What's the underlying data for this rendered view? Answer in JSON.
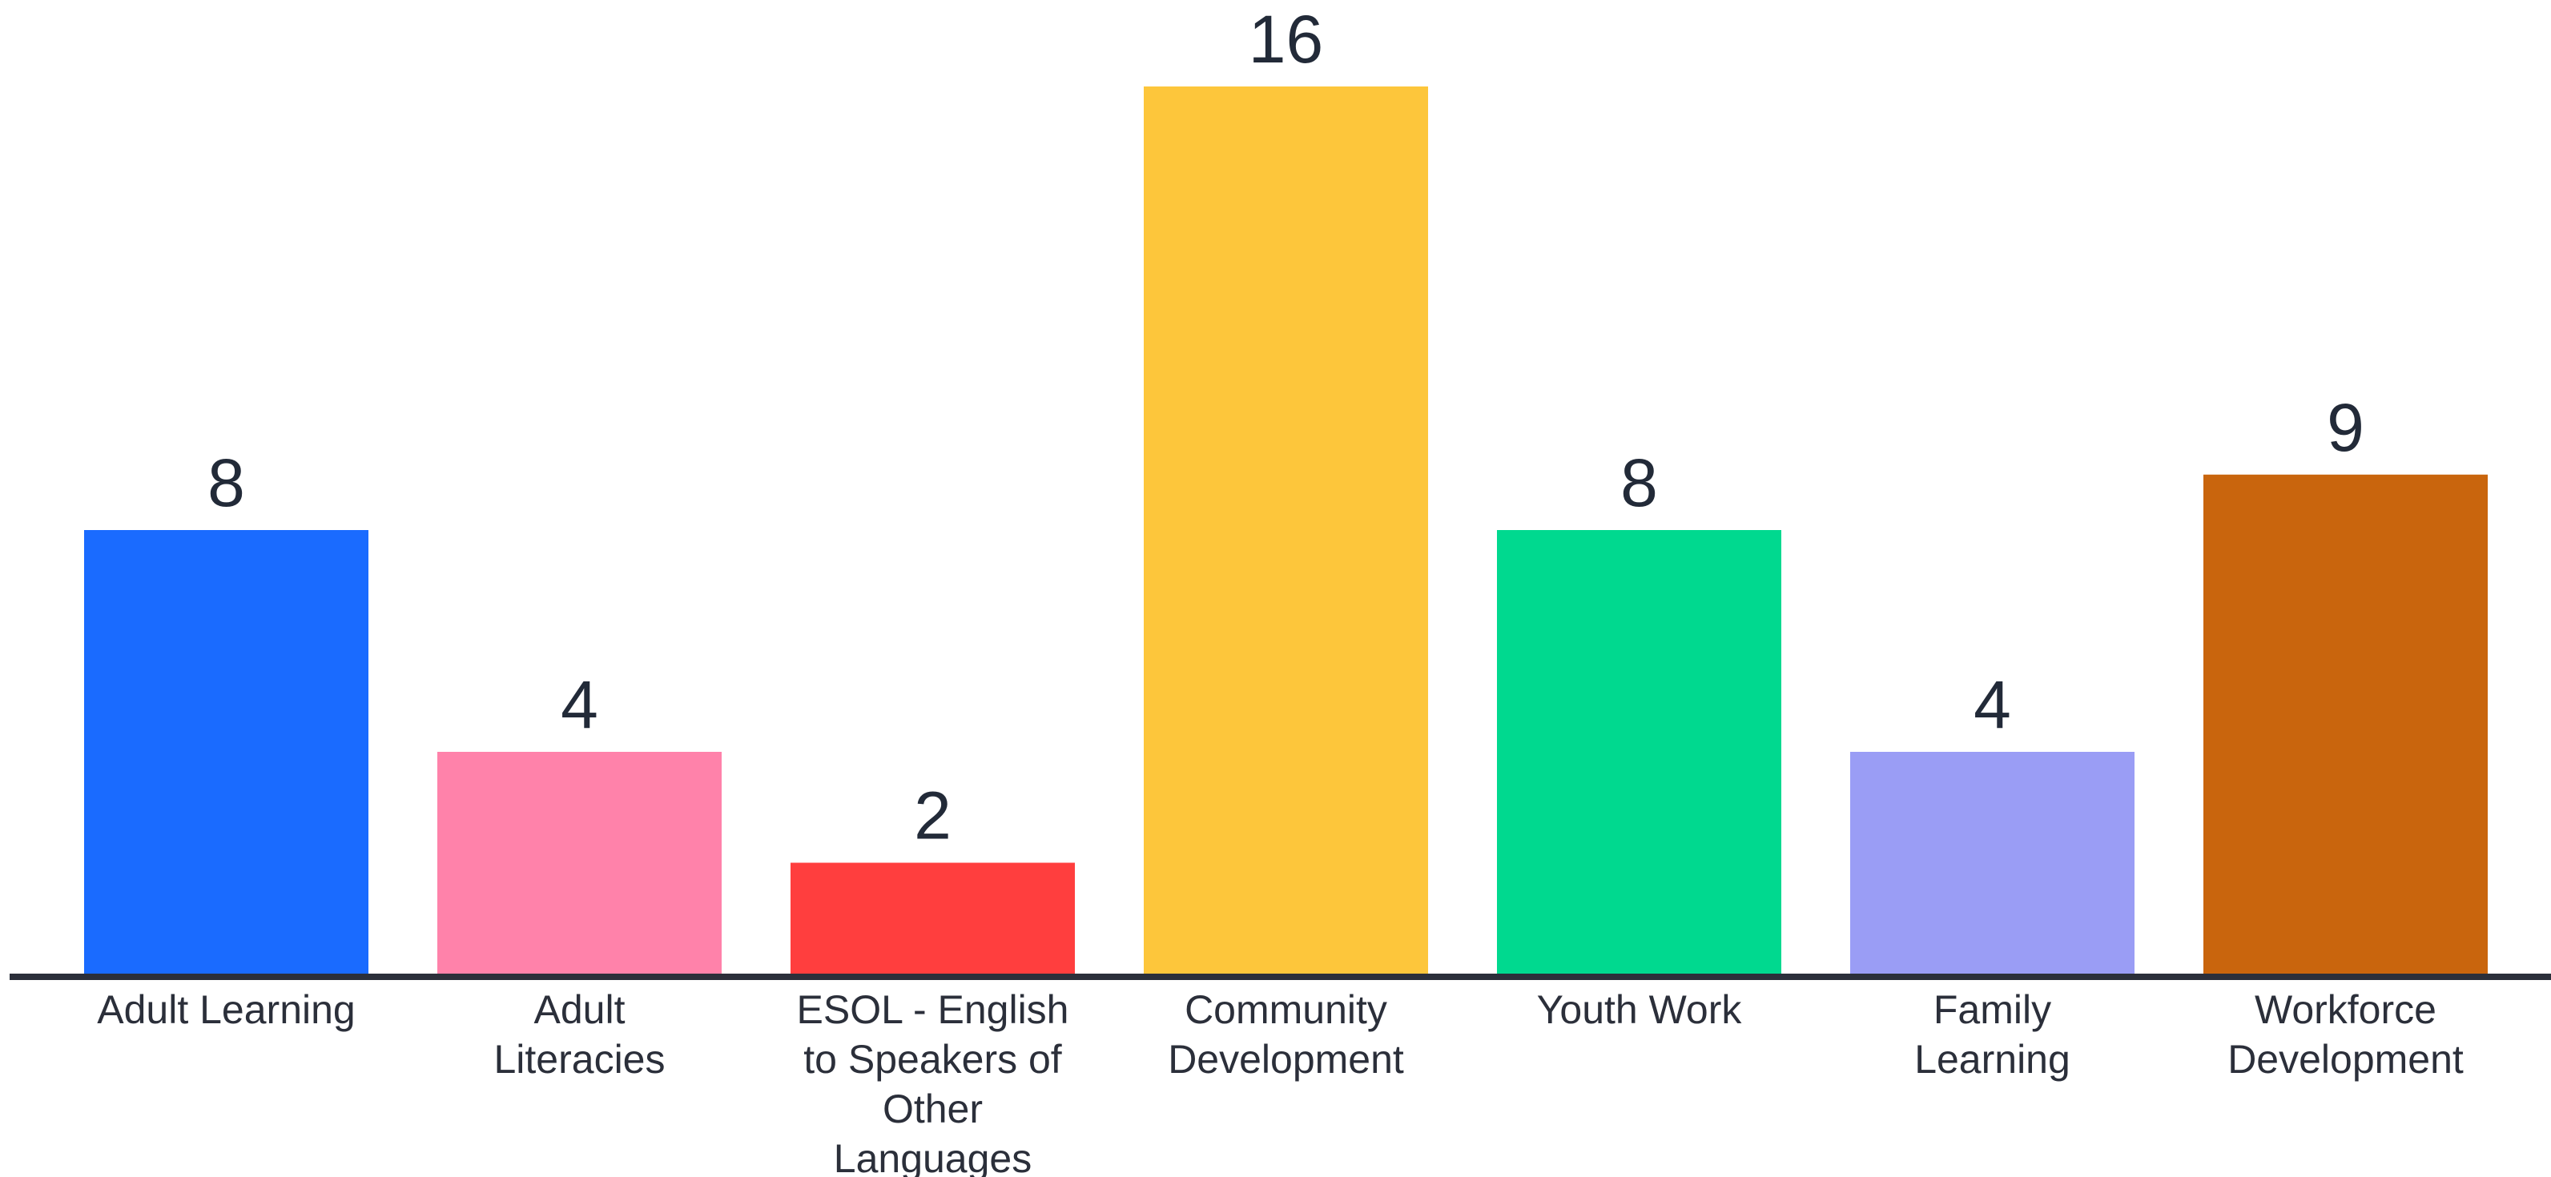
{
  "chart_data": {
    "type": "bar",
    "title": "",
    "xlabel": "",
    "ylabel": "",
    "ylim": [
      0,
      16
    ],
    "grid": false,
    "categories": [
      [
        "Adult Learning"
      ],
      [
        "Adult",
        "Literacies"
      ],
      [
        "ESOL - English",
        "to Speakers of",
        "Other",
        "Languages"
      ],
      [
        "Community",
        "Development"
      ],
      [
        "Youth Work"
      ],
      [
        "Family",
        "Learning"
      ],
      [
        "Workforce",
        "Development"
      ]
    ],
    "values": [
      8,
      4,
      2,
      16,
      8,
      4,
      9
    ],
    "colors": [
      "#1a6bff",
      "#ff82aa",
      "#ff3e3e",
      "#fdc63b",
      "#00d98f",
      "#9a9df5",
      "#c9650d"
    ]
  }
}
